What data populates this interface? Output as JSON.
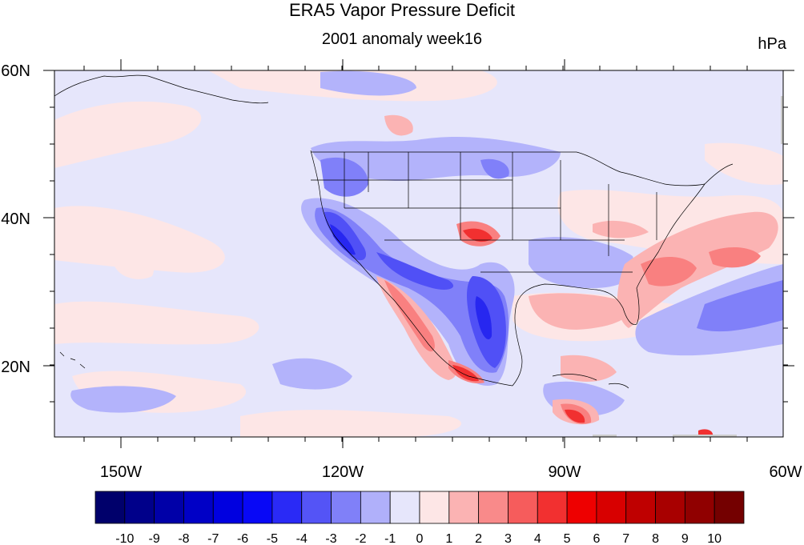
{
  "header": {
    "title": "ERA5 Vapor Pressure Deficit",
    "subtitle": "2001 anomaly week16",
    "units": "hPa"
  },
  "map": {
    "lat_labels": [
      "60N",
      "40N",
      "20N"
    ],
    "lon_labels": [
      "150W",
      "120W",
      "90W",
      "60W"
    ],
    "colors": {
      "ocean_base": "#e6e6fb",
      "pos1": "#fde6e6",
      "pos2": "#fbb3b3",
      "pos3": "#f98080",
      "pos5": "#f13030",
      "pos7": "#d60000",
      "neg2": "#b3b3fb",
      "neg3": "#8080f9",
      "neg4": "#5050f6",
      "neg5": "#2727f0",
      "boundary": "#000000"
    }
  },
  "colorbar": {
    "labels": [
      "-10",
      "-9",
      "-8",
      "-7",
      "-6",
      "-5",
      "-4",
      "-3",
      "-2",
      "-1",
      "0",
      "1",
      "2",
      "3",
      "4",
      "5",
      "6",
      "7",
      "8",
      "9",
      "10"
    ],
    "colors": [
      "#00006b",
      "#00008a",
      "#0000a8",
      "#0000c6",
      "#0000e0",
      "#0808f6",
      "#2a2af6",
      "#5454f6",
      "#8080f8",
      "#b0b0fa",
      "#e6e6fb",
      "#fde6e6",
      "#fbb3b3",
      "#f98a8a",
      "#f65c5c",
      "#f23030",
      "#ee0000",
      "#d80000",
      "#bf0000",
      "#a80000",
      "#900000",
      "#740000"
    ]
  }
}
